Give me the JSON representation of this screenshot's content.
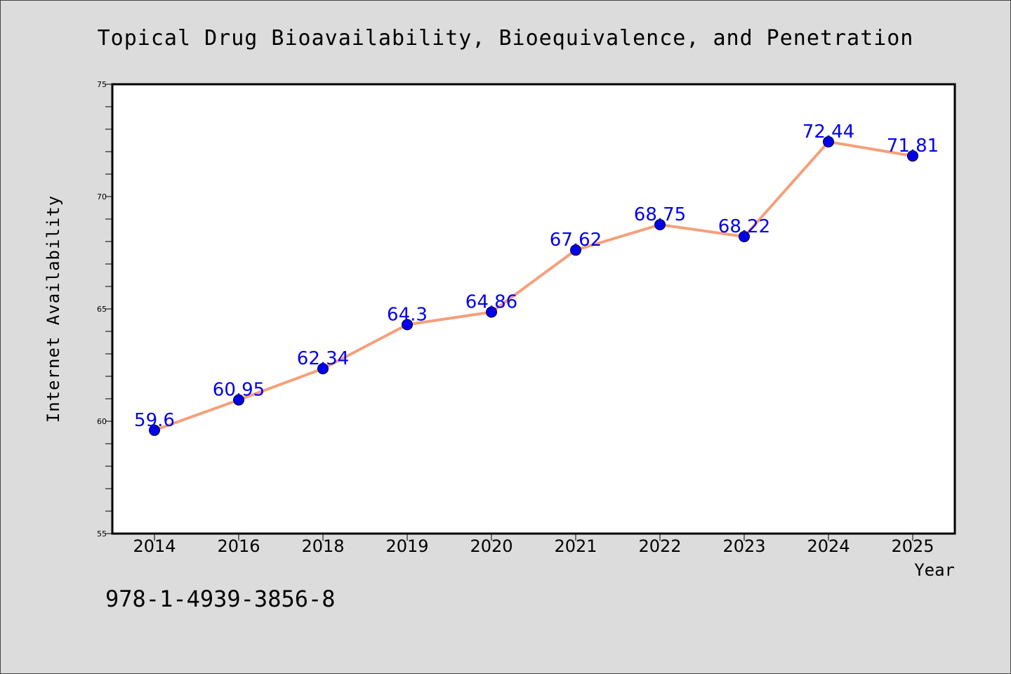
{
  "chart_data": {
    "type": "line",
    "title": "Topical Drug Bioavailability, Bioequivalence, and Penetration",
    "xlabel": "Year",
    "ylabel": "Internet Availability",
    "categories": [
      "2014",
      "2016",
      "2018",
      "2019",
      "2020",
      "2021",
      "2022",
      "2023",
      "2024",
      "2025"
    ],
    "series": [
      {
        "values": [
          59.6,
          60.95,
          62.34,
          64.3,
          64.86,
          67.62,
          68.75,
          68.22,
          72.44,
          71.81
        ]
      }
    ],
    "data_labels": [
      "59.6",
      "60.95",
      "62.34",
      "64.3",
      "64.86",
      "67.62",
      "68.75",
      "68.22",
      "72.44",
      "71.81"
    ],
    "ylim": [
      55,
      75
    ],
    "yticks": [
      55,
      60,
      65,
      70,
      75
    ],
    "ytick_labels": [
      "55",
      "60",
      "65",
      "70",
      "75"
    ],
    "grid": false,
    "colors": {
      "line": "#f4a07a",
      "marker": "#0000ee",
      "data_label": "#0000ee",
      "background": "#dcdcdc",
      "plot_area": "#ffffff"
    }
  },
  "footer": {
    "isbn": "978-1-4939-3856-8"
  }
}
